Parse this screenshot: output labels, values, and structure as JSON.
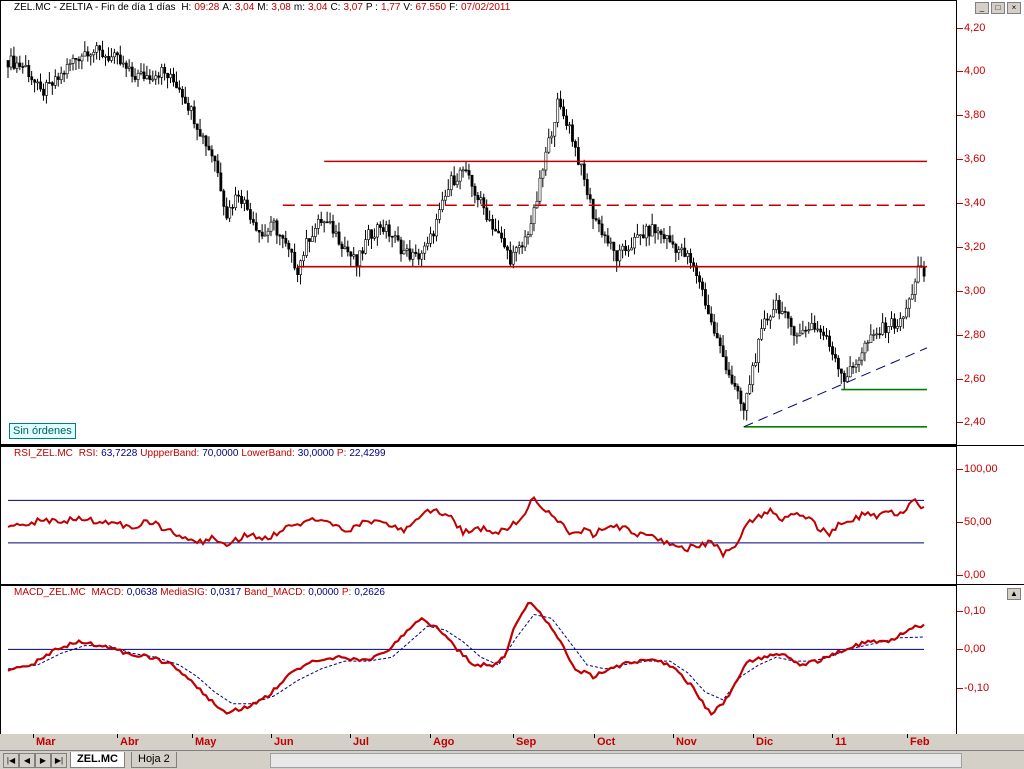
{
  "price_header": {
    "symbol": "ZEL.MC - ZELTIA - Fin de día 1 días",
    "fields": [
      {
        "label": "H:",
        "value": "09:28"
      },
      {
        "label": "A:",
        "value": "3,04"
      },
      {
        "label": "M:",
        "value": "3,08"
      },
      {
        "label": "m:",
        "value": "3,04"
      },
      {
        "label": "C:",
        "value": "3,07"
      },
      {
        "label": "P :",
        "value": "1,77"
      },
      {
        "label": "V:",
        "value": "67.550"
      },
      {
        "label": "F:",
        "value": "07/02/2011"
      }
    ]
  },
  "rsi_header": {
    "name": "RSI_ZEL.MC",
    "fields": [
      {
        "label": "RSI:",
        "value": "63,7228"
      },
      {
        "label": "UppperBand:",
        "value": "70,0000"
      },
      {
        "label": "LowerBand:",
        "value": "30,0000"
      },
      {
        "label": "P:",
        "value": "22,4299"
      }
    ]
  },
  "macd_header": {
    "name": "MACD_ZEL.MC",
    "fields": [
      {
        "label": "MACD:",
        "value": "0,0638"
      },
      {
        "label": "MediaSIG:",
        "value": "0,0317"
      },
      {
        "label": "Band_MACD:",
        "value": "0,0000"
      },
      {
        "label": "P:",
        "value": "0,2626"
      }
    ]
  },
  "badge": "Sin órdenes",
  "tabs": {
    "active": "ZEL.MC",
    "inactive": "Hoja 2"
  },
  "colors": {
    "accent": "#c00000",
    "candle": "#000000",
    "band": "#000080",
    "support": "#008000"
  },
  "chart_data": [
    {
      "type": "candlestick",
      "ylim": [
        2.32,
        4.28
      ],
      "yticks": [
        "4,20",
        "4,00",
        "3,80",
        "3,60",
        "3,40",
        "3,20",
        "3,00",
        "2,80",
        "2,60",
        "2,40"
      ],
      "ytick_values": [
        4.2,
        4.0,
        3.8,
        3.6,
        3.4,
        3.2,
        3.0,
        2.8,
        2.6,
        2.4
      ],
      "x_labels": [
        "Mar",
        "Abr",
        "May",
        "Jun",
        "Jul",
        "Ago",
        "Sep",
        "Oct",
        "Nov",
        "Dic",
        "11",
        "Feb"
      ],
      "close_path": [
        [
          0,
          4.05
        ],
        [
          6,
          4.02
        ],
        [
          11,
          3.9
        ],
        [
          16,
          3.95
        ],
        [
          22,
          4.05
        ],
        [
          27,
          4.1
        ],
        [
          32,
          4.08
        ],
        [
          37,
          4.05
        ],
        [
          42,
          3.98
        ],
        [
          47,
          3.98
        ],
        [
          52,
          4.0
        ],
        [
          58,
          3.93
        ],
        [
          62,
          3.82
        ],
        [
          66,
          3.7
        ],
        [
          70,
          3.6
        ],
        [
          74,
          3.35
        ],
        [
          78,
          3.45
        ],
        [
          82,
          3.35
        ],
        [
          86,
          3.25
        ],
        [
          90,
          3.3
        ],
        [
          94,
          3.2
        ],
        [
          98,
          3.1
        ],
        [
          102,
          3.25
        ],
        [
          106,
          3.32
        ],
        [
          110,
          3.28
        ],
        [
          114,
          3.2
        ],
        [
          118,
          3.12
        ],
        [
          122,
          3.25
        ],
        [
          126,
          3.3
        ],
        [
          130,
          3.25
        ],
        [
          134,
          3.18
        ],
        [
          138,
          3.15
        ],
        [
          142,
          3.2
        ],
        [
          146,
          3.35
        ],
        [
          150,
          3.5
        ],
        [
          154,
          3.55
        ],
        [
          158,
          3.45
        ],
        [
          162,
          3.35
        ],
        [
          166,
          3.25
        ],
        [
          170,
          3.15
        ],
        [
          174,
          3.2
        ],
        [
          178,
          3.35
        ],
        [
          182,
          3.62
        ],
        [
          186,
          3.85
        ],
        [
          190,
          3.75
        ],
        [
          194,
          3.55
        ],
        [
          198,
          3.35
        ],
        [
          202,
          3.25
        ],
        [
          206,
          3.15
        ],
        [
          210,
          3.2
        ],
        [
          214,
          3.25
        ],
        [
          218,
          3.28
        ],
        [
          222,
          3.25
        ],
        [
          226,
          3.2
        ],
        [
          230,
          3.15
        ],
        [
          234,
          3.05
        ],
        [
          238,
          2.85
        ],
        [
          242,
          2.7
        ],
        [
          246,
          2.55
        ],
        [
          249,
          2.45
        ],
        [
          252,
          2.65
        ],
        [
          256,
          2.85
        ],
        [
          260,
          2.95
        ],
        [
          264,
          2.85
        ],
        [
          268,
          2.8
        ],
        [
          272,
          2.85
        ],
        [
          276,
          2.8
        ],
        [
          280,
          2.7
        ],
        [
          283,
          2.6
        ],
        [
          286,
          2.65
        ],
        [
          290,
          2.75
        ],
        [
          294,
          2.8
        ],
        [
          298,
          2.85
        ],
        [
          302,
          2.85
        ],
        [
          305,
          2.95
        ],
        [
          308,
          3.1
        ],
        [
          310,
          3.07
        ]
      ],
      "n_bars": 311,
      "overlays": [
        {
          "kind": "horizontal",
          "style": "solid",
          "color": "#c00000",
          "y": 3.59,
          "from": 107,
          "to": 311
        },
        {
          "kind": "horizontal",
          "style": "dashed",
          "color": "#c00000",
          "y": 3.39,
          "from": 93,
          "to": 311
        },
        {
          "kind": "horizontal",
          "style": "solid",
          "color": "#c00000",
          "y": 3.11,
          "from": 98,
          "to": 311
        },
        {
          "kind": "horizontal",
          "style": "solid",
          "color": "#008000",
          "y": 2.55,
          "from": 282,
          "to": 311
        },
        {
          "kind": "horizontal",
          "style": "solid",
          "color": "#008000",
          "y": 2.38,
          "from": 249,
          "to": 311
        },
        {
          "kind": "trend",
          "style": "dashed",
          "color": "#000080",
          "from": [
            249,
            2.38
          ],
          "to": [
            311,
            2.74
          ]
        }
      ]
    },
    {
      "type": "line",
      "title": "RSI_ZEL.MC",
      "ylim": [
        -5,
        110
      ],
      "yticks": [
        "100,00",
        "50,00",
        "0,00"
      ],
      "ytick_values": [
        100,
        50,
        0
      ],
      "upper_band": 70,
      "lower_band": 30,
      "rsi_path": [
        [
          0,
          48
        ],
        [
          6,
          47
        ],
        [
          12,
          52
        ],
        [
          18,
          50
        ],
        [
          24,
          53
        ],
        [
          30,
          51
        ],
        [
          36,
          48
        ],
        [
          42,
          45
        ],
        [
          48,
          50
        ],
        [
          54,
          42
        ],
        [
          58,
          38
        ],
        [
          62,
          33
        ],
        [
          66,
          30
        ],
        [
          70,
          35
        ],
        [
          74,
          30
        ],
        [
          78,
          34
        ],
        [
          82,
          40
        ],
        [
          86,
          33
        ],
        [
          90,
          37
        ],
        [
          94,
          44
        ],
        [
          98,
          46
        ],
        [
          102,
          50
        ],
        [
          106,
          52
        ],
        [
          110,
          48
        ],
        [
          114,
          40
        ],
        [
          118,
          45
        ],
        [
          122,
          51
        ],
        [
          126,
          48
        ],
        [
          130,
          45
        ],
        [
          134,
          42
        ],
        [
          138,
          50
        ],
        [
          142,
          62
        ],
        [
          146,
          58
        ],
        [
          150,
          53
        ],
        [
          154,
          40
        ],
        [
          158,
          45
        ],
        [
          162,
          42
        ],
        [
          166,
          40
        ],
        [
          170,
          45
        ],
        [
          174,
          55
        ],
        [
          178,
          72
        ],
        [
          182,
          62
        ],
        [
          186,
          50
        ],
        [
          190,
          40
        ],
        [
          194,
          42
        ],
        [
          198,
          38
        ],
        [
          202,
          44
        ],
        [
          206,
          45
        ],
        [
          210,
          42
        ],
        [
          214,
          38
        ],
        [
          218,
          35
        ],
        [
          222,
          30
        ],
        [
          226,
          27
        ],
        [
          230,
          25
        ],
        [
          234,
          28
        ],
        [
          238,
          30
        ],
        [
          242,
          20
        ],
        [
          246,
          25
        ],
        [
          250,
          50
        ],
        [
          254,
          55
        ],
        [
          258,
          60
        ],
        [
          262,
          52
        ],
        [
          266,
          58
        ],
        [
          270,
          55
        ],
        [
          274,
          45
        ],
        [
          278,
          38
        ],
        [
          282,
          50
        ],
        [
          286,
          53
        ],
        [
          290,
          57
        ],
        [
          294,
          55
        ],
        [
          298,
          60
        ],
        [
          302,
          58
        ],
        [
          306,
          70
        ],
        [
          310,
          63.7
        ]
      ]
    },
    {
      "type": "line",
      "title": "MACD_ZEL.MC",
      "ylim": [
        -0.21,
        0.135
      ],
      "yticks": [
        "0,10",
        "0,00",
        "-0,10"
      ],
      "ytick_values": [
        0.1,
        0,
        -0.1
      ],
      "band": 0,
      "macd_path": [
        [
          0,
          -0.05
        ],
        [
          8,
          -0.04
        ],
        [
          16,
          0.0
        ],
        [
          24,
          0.02
        ],
        [
          32,
          0.01
        ],
        [
          40,
          -0.01
        ],
        [
          48,
          -0.02
        ],
        [
          56,
          -0.04
        ],
        [
          62,
          -0.08
        ],
        [
          68,
          -0.13
        ],
        [
          74,
          -0.16
        ],
        [
          80,
          -0.15
        ],
        [
          88,
          -0.12
        ],
        [
          96,
          -0.06
        ],
        [
          104,
          -0.03
        ],
        [
          112,
          -0.02
        ],
        [
          120,
          -0.03
        ],
        [
          128,
          -0.01
        ],
        [
          134,
          0.04
        ],
        [
          140,
          0.08
        ],
        [
          146,
          0.05
        ],
        [
          152,
          0.0
        ],
        [
          158,
          -0.04
        ],
        [
          164,
          -0.04
        ],
        [
          168,
          -0.02
        ],
        [
          172,
          0.07
        ],
        [
          176,
          0.12
        ],
        [
          180,
          0.1
        ],
        [
          186,
          0.03
        ],
        [
          192,
          -0.05
        ],
        [
          198,
          -0.07
        ],
        [
          204,
          -0.05
        ],
        [
          212,
          -0.03
        ],
        [
          220,
          -0.03
        ],
        [
          226,
          -0.05
        ],
        [
          232,
          -0.1
        ],
        [
          238,
          -0.17
        ],
        [
          244,
          -0.12
        ],
        [
          250,
          -0.03
        ],
        [
          256,
          -0.02
        ],
        [
          262,
          -0.01
        ],
        [
          268,
          -0.04
        ],
        [
          274,
          -0.03
        ],
        [
          280,
          -0.01
        ],
        [
          286,
          0.01
        ],
        [
          292,
          0.02
        ],
        [
          298,
          0.02
        ],
        [
          304,
          0.05
        ],
        [
          310,
          0.064
        ]
      ],
      "signal_path": [
        [
          0,
          -0.05
        ],
        [
          10,
          -0.04
        ],
        [
          18,
          -0.01
        ],
        [
          26,
          0.01
        ],
        [
          34,
          0.01
        ],
        [
          42,
          -0.01
        ],
        [
          50,
          -0.02
        ],
        [
          58,
          -0.04
        ],
        [
          64,
          -0.07
        ],
        [
          70,
          -0.11
        ],
        [
          76,
          -0.14
        ],
        [
          82,
          -0.14
        ],
        [
          90,
          -0.12
        ],
        [
          98,
          -0.08
        ],
        [
          106,
          -0.05
        ],
        [
          114,
          -0.03
        ],
        [
          122,
          -0.03
        ],
        [
          130,
          -0.02
        ],
        [
          136,
          0.02
        ],
        [
          142,
          0.06
        ],
        [
          148,
          0.05
        ],
        [
          154,
          0.02
        ],
        [
          160,
          -0.02
        ],
        [
          166,
          -0.04
        ],
        [
          172,
          0.03
        ],
        [
          178,
          0.09
        ],
        [
          184,
          0.08
        ],
        [
          190,
          0.02
        ],
        [
          196,
          -0.04
        ],
        [
          202,
          -0.05
        ],
        [
          208,
          -0.04
        ],
        [
          216,
          -0.03
        ],
        [
          224,
          -0.03
        ],
        [
          230,
          -0.06
        ],
        [
          236,
          -0.11
        ],
        [
          242,
          -0.13
        ],
        [
          248,
          -0.07
        ],
        [
          254,
          -0.04
        ],
        [
          260,
          -0.02
        ],
        [
          266,
          -0.03
        ],
        [
          272,
          -0.03
        ],
        [
          278,
          -0.02
        ],
        [
          284,
          0.0
        ],
        [
          290,
          0.01
        ],
        [
          296,
          0.02
        ],
        [
          302,
          0.03
        ],
        [
          310,
          0.032
        ]
      ]
    }
  ]
}
